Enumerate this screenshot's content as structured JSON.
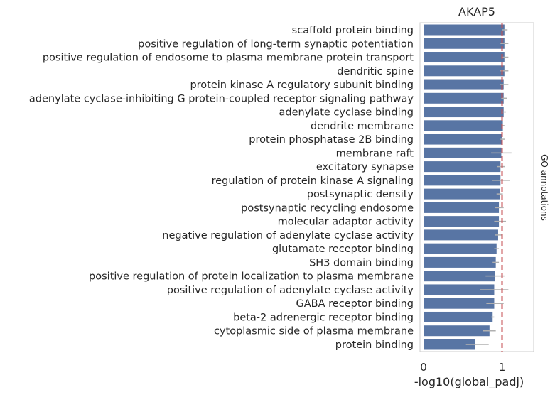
{
  "chart_data": {
    "type": "bar",
    "orientation": "horizontal",
    "title": "AKAP5",
    "xlabel": "-log10(global_padj)",
    "ylabel": "GO annotations",
    "xlim": [
      0,
      1.4
    ],
    "xticks": [
      0,
      1
    ],
    "grid": false,
    "bar_color": "#5875a4",
    "errorbar_color": "#b0b0b0",
    "reference_line": {
      "x": 1.0,
      "color": "#c44e52",
      "style": "dashed"
    },
    "categories": [
      "scaffold protein binding",
      "positive regulation of long-term synaptic potentiation",
      "positive regulation of endosome to plasma membrane protein transport",
      "dendritic spine",
      "protein kinase A regulatory subunit binding",
      "adenylate cyclase-inhibiting G protein-coupled receptor signaling pathway",
      "adenylate cyclase binding",
      "dendrite membrane",
      "protein phosphatase 2B binding",
      "membrane raft",
      "excitatory synapse",
      "regulation of protein kinase A signaling",
      "postsynaptic density",
      "postsynaptic recycling endosome",
      "molecular adaptor activity",
      "negative regulation of adenylate cyclase activity",
      "glutamate receptor binding",
      "SH3 domain binding",
      "positive regulation of protein localization to plasma membrane",
      "positive regulation of adenylate cyclase activity",
      "GABA receptor binding",
      "beta-2 adrenergic receptor binding",
      "cytoplasmic side of plasma membrane",
      "protein binding"
    ],
    "values": [
      1.03,
      1.03,
      1.03,
      1.03,
      1.02,
      1.02,
      1.02,
      1.01,
      1.0,
      0.99,
      0.98,
      0.98,
      0.97,
      0.96,
      0.96,
      0.95,
      0.93,
      0.92,
      0.91,
      0.9,
      0.9,
      0.88,
      0.84,
      0.66
    ],
    "error_low": [
      1.0,
      0.98,
      0.99,
      0.98,
      0.97,
      0.99,
      0.99,
      1.0,
      0.98,
      0.86,
      0.94,
      0.87,
      0.93,
      0.91,
      0.9,
      0.91,
      0.9,
      0.88,
      0.79,
      0.72,
      0.8,
      0.86,
      0.76,
      0.54
    ],
    "error_high": [
      1.07,
      1.08,
      1.08,
      1.08,
      1.08,
      1.06,
      1.05,
      1.03,
      1.04,
      1.12,
      1.04,
      1.1,
      1.01,
      1.02,
      1.05,
      1.0,
      0.96,
      0.96,
      1.03,
      1.08,
      1.02,
      0.9,
      0.92,
      0.83
    ]
  }
}
